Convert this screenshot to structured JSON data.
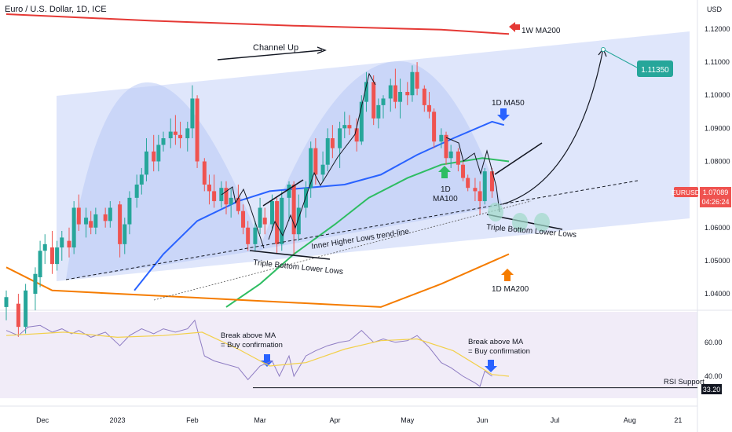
{
  "header": {
    "symbol_line": "Euro / U.S. Dollar, 1D, ICE"
  },
  "currency_label": "USD",
  "colors": {
    "up": "#26a69a",
    "down": "#ef5350",
    "ma50": "#2962ff",
    "ma100": "#2ebd62",
    "ma200_1d": "#f57c00",
    "ma200_1w": "#e53935",
    "channel": "#c5d2f7",
    "rsi": "#8e7cc3",
    "rsi_ma": "#f2d04b",
    "rsi_band": "#ede7f6",
    "price_tag": "#ef5350",
    "target_tag": "#26a69a",
    "blue_arrow": "#2962ff"
  },
  "annotations": {
    "channel_up": "Channel Up",
    "ma200_1w": "1W MA200",
    "ma50_1d": "1D MA50",
    "ma100_1d_line1": "1D",
    "ma100_1d_line2": "MA100",
    "ma200_1d": "1D MA200",
    "inner_trendline": "Inner Higher Lows trend-line",
    "triple_bottom_left": "Triple Bottom Lower Lows",
    "triple_bottom_right": "Triple Bottom Lower Lows",
    "rsi_break_left_1": "Break above MA",
    "rsi_break_left_2": "= Buy confirmation",
    "rsi_break_right_1": "Break above MA",
    "rsi_break_right_2": "= Buy confirmation",
    "rsi_support": "RSI Support",
    "target": "1.11350"
  },
  "price_tag": {
    "symbol": "EURUSD",
    "price": "1.07089",
    "countdown": "04:26:24"
  },
  "rsi_tag": "33.20",
  "chart_data": {
    "type": "candlestick",
    "title": "Euro / U.S. Dollar, 1D, ICE",
    "y_axis": {
      "label": "USD",
      "ticks": [
        "1.12000",
        "1.11000",
        "1.10000",
        "1.09000",
        "1.08000",
        "1.07000",
        "1.06000",
        "1.05000",
        "1.04000"
      ],
      "range": [
        1.0355,
        1.1245
      ]
    },
    "rsi_axis": {
      "ticks": [
        "60.00",
        "40.00"
      ],
      "range": [
        27,
        78
      ],
      "support": 33.2
    },
    "x_ticks": [
      "Dec",
      "2023",
      "Feb",
      "Mar",
      "Apr",
      "May",
      "Jun",
      "Jul",
      "Aug",
      "21"
    ],
    "x_tick_dates": [
      "2022-12-01",
      "2023-01-01",
      "2023-02-01",
      "2023-03-01",
      "2023-04-01",
      "2023-05-01",
      "2023-06-01",
      "2023-07-01",
      "2023-08-01",
      "2023-08-21"
    ],
    "date_range": [
      "2022-11-16",
      "2023-08-29"
    ],
    "candles": [
      {
        "date": "2022-11-16",
        "o": 1.036,
        "h": 1.041,
        "l": 1.032,
        "c": 1.039
      },
      {
        "date": "2022-11-21",
        "o": 1.037,
        "h": 1.04,
        "l": 1.027,
        "c": 1.03
      },
      {
        "date": "2022-11-24",
        "o": 1.03,
        "h": 1.043,
        "l": 1.028,
        "c": 1.041
      },
      {
        "date": "2022-11-28",
        "o": 1.04,
        "h": 1.048,
        "l": 1.035,
        "c": 1.046
      },
      {
        "date": "2022-11-30",
        "o": 1.045,
        "h": 1.056,
        "l": 1.042,
        "c": 1.053
      },
      {
        "date": "2022-12-02",
        "o": 1.053,
        "h": 1.058,
        "l": 1.049,
        "c": 1.055
      },
      {
        "date": "2022-12-05",
        "o": 1.054,
        "h": 1.059,
        "l": 1.046,
        "c": 1.049
      },
      {
        "date": "2022-12-07",
        "o": 1.049,
        "h": 1.056,
        "l": 1.047,
        "c": 1.054
      },
      {
        "date": "2022-12-09",
        "o": 1.054,
        "h": 1.059,
        "l": 1.05,
        "c": 1.057
      },
      {
        "date": "2022-12-12",
        "o": 1.056,
        "h": 1.06,
        "l": 1.051,
        "c": 1.054
      },
      {
        "date": "2022-12-14",
        "o": 1.054,
        "h": 1.068,
        "l": 1.052,
        "c": 1.066
      },
      {
        "date": "2022-12-16",
        "o": 1.066,
        "h": 1.07,
        "l": 1.059,
        "c": 1.061
      },
      {
        "date": "2022-12-19",
        "o": 1.061,
        "h": 1.066,
        "l": 1.057,
        "c": 1.063
      },
      {
        "date": "2022-12-21",
        "o": 1.062,
        "h": 1.065,
        "l": 1.058,
        "c": 1.06
      },
      {
        "date": "2022-12-23",
        "o": 1.06,
        "h": 1.066,
        "l": 1.058,
        "c": 1.064
      },
      {
        "date": "2022-12-27",
        "o": 1.064,
        "h": 1.066,
        "l": 1.06,
        "c": 1.062
      },
      {
        "date": "2022-12-29",
        "o": 1.062,
        "h": 1.068,
        "l": 1.06,
        "c": 1.066
      },
      {
        "date": "2023-01-02",
        "o": 1.067,
        "h": 1.068,
        "l": 1.051,
        "c": 1.055
      },
      {
        "date": "2023-01-04",
        "o": 1.055,
        "h": 1.063,
        "l": 1.052,
        "c": 1.061
      },
      {
        "date": "2023-01-06",
        "o": 1.061,
        "h": 1.071,
        "l": 1.058,
        "c": 1.069
      },
      {
        "date": "2023-01-09",
        "o": 1.069,
        "h": 1.076,
        "l": 1.066,
        "c": 1.073
      },
      {
        "date": "2023-01-11",
        "o": 1.073,
        "h": 1.078,
        "l": 1.07,
        "c": 1.076
      },
      {
        "date": "2023-01-13",
        "o": 1.076,
        "h": 1.087,
        "l": 1.074,
        "c": 1.083
      },
      {
        "date": "2023-01-16",
        "o": 1.083,
        "h": 1.088,
        "l": 1.077,
        "c": 1.08
      },
      {
        "date": "2023-01-18",
        "o": 1.08,
        "h": 1.088,
        "l": 1.077,
        "c": 1.085
      },
      {
        "date": "2023-01-20",
        "o": 1.085,
        "h": 1.089,
        "l": 1.083,
        "c": 1.087
      },
      {
        "date": "2023-01-23",
        "o": 1.087,
        "h": 1.093,
        "l": 1.084,
        "c": 1.089
      },
      {
        "date": "2023-01-25",
        "o": 1.089,
        "h": 1.094,
        "l": 1.085,
        "c": 1.088
      },
      {
        "date": "2023-01-27",
        "o": 1.088,
        "h": 1.092,
        "l": 1.084,
        "c": 1.087
      },
      {
        "date": "2023-01-30",
        "o": 1.087,
        "h": 1.092,
        "l": 1.083,
        "c": 1.09
      },
      {
        "date": "2023-02-01",
        "o": 1.09,
        "h": 1.103,
        "l": 1.087,
        "c": 1.099
      },
      {
        "date": "2023-02-03",
        "o": 1.099,
        "h": 1.1,
        "l": 1.078,
        "c": 1.08
      },
      {
        "date": "2023-02-06",
        "o": 1.08,
        "h": 1.081,
        "l": 1.071,
        "c": 1.073
      },
      {
        "date": "2023-02-08",
        "o": 1.073,
        "h": 1.076,
        "l": 1.067,
        "c": 1.071
      },
      {
        "date": "2023-02-10",
        "o": 1.071,
        "h": 1.076,
        "l": 1.066,
        "c": 1.068
      },
      {
        "date": "2023-02-13",
        "o": 1.068,
        "h": 1.074,
        "l": 1.066,
        "c": 1.072
      },
      {
        "date": "2023-02-15",
        "o": 1.072,
        "h": 1.074,
        "l": 1.064,
        "c": 1.067
      },
      {
        "date": "2023-02-17",
        "o": 1.067,
        "h": 1.072,
        "l": 1.063,
        "c": 1.069
      },
      {
        "date": "2023-02-20",
        "o": 1.069,
        "h": 1.073,
        "l": 1.064,
        "c": 1.065
      },
      {
        "date": "2023-02-22",
        "o": 1.065,
        "h": 1.067,
        "l": 1.058,
        "c": 1.06
      },
      {
        "date": "2023-02-24",
        "o": 1.06,
        "h": 1.062,
        "l": 1.053,
        "c": 1.055
      },
      {
        "date": "2023-02-27",
        "o": 1.055,
        "h": 1.062,
        "l": 1.053,
        "c": 1.06
      },
      {
        "date": "2023-03-01",
        "o": 1.06,
        "h": 1.069,
        "l": 1.058,
        "c": 1.066
      },
      {
        "date": "2023-03-03",
        "o": 1.063,
        "h": 1.066,
        "l": 1.058,
        "c": 1.061
      },
      {
        "date": "2023-03-06",
        "o": 1.061,
        "h": 1.07,
        "l": 1.059,
        "c": 1.068
      },
      {
        "date": "2023-03-08",
        "o": 1.068,
        "h": 1.069,
        "l": 1.052,
        "c": 1.055
      },
      {
        "date": "2023-03-10",
        "o": 1.055,
        "h": 1.071,
        "l": 1.053,
        "c": 1.069
      },
      {
        "date": "2023-03-13",
        "o": 1.069,
        "h": 1.074,
        "l": 1.062,
        "c": 1.073
      },
      {
        "date": "2023-03-15",
        "o": 1.073,
        "h": 1.074,
        "l": 1.052,
        "c": 1.058
      },
      {
        "date": "2023-03-17",
        "o": 1.058,
        "h": 1.07,
        "l": 1.056,
        "c": 1.066
      },
      {
        "date": "2023-03-20",
        "o": 1.066,
        "h": 1.074,
        "l": 1.063,
        "c": 1.072
      },
      {
        "date": "2023-03-22",
        "o": 1.072,
        "h": 1.086,
        "l": 1.069,
        "c": 1.084
      },
      {
        "date": "2023-03-24",
        "o": 1.084,
        "h": 1.087,
        "l": 1.073,
        "c": 1.076
      },
      {
        "date": "2023-03-27",
        "o": 1.076,
        "h": 1.083,
        "l": 1.074,
        "c": 1.079
      },
      {
        "date": "2023-03-29",
        "o": 1.079,
        "h": 1.09,
        "l": 1.077,
        "c": 1.087
      },
      {
        "date": "2023-03-31",
        "o": 1.087,
        "h": 1.091,
        "l": 1.081,
        "c": 1.084
      },
      {
        "date": "2023-04-03",
        "o": 1.084,
        "h": 1.092,
        "l": 1.078,
        "c": 1.09
      },
      {
        "date": "2023-04-05",
        "o": 1.09,
        "h": 1.095,
        "l": 1.087,
        "c": 1.091
      },
      {
        "date": "2023-04-07",
        "o": 1.091,
        "h": 1.094,
        "l": 1.088,
        "c": 1.09
      },
      {
        "date": "2023-04-10",
        "o": 1.09,
        "h": 1.093,
        "l": 1.083,
        "c": 1.086
      },
      {
        "date": "2023-04-12",
        "o": 1.086,
        "h": 1.1,
        "l": 1.085,
        "c": 1.098
      },
      {
        "date": "2023-04-14",
        "o": 1.098,
        "h": 1.107,
        "l": 1.095,
        "c": 1.104
      },
      {
        "date": "2023-04-17",
        "o": 1.104,
        "h": 1.106,
        "l": 1.091,
        "c": 1.093
      },
      {
        "date": "2023-04-19",
        "o": 1.093,
        "h": 1.099,
        "l": 1.09,
        "c": 1.097
      },
      {
        "date": "2023-04-21",
        "o": 1.097,
        "h": 1.1,
        "l": 1.093,
        "c": 1.099
      },
      {
        "date": "2023-04-24",
        "o": 1.099,
        "h": 1.105,
        "l": 1.095,
        "c": 1.103
      },
      {
        "date": "2023-04-26",
        "o": 1.103,
        "h": 1.108,
        "l": 1.096,
        "c": 1.098
      },
      {
        "date": "2023-04-28",
        "o": 1.098,
        "h": 1.105,
        "l": 1.093,
        "c": 1.101
      },
      {
        "date": "2023-05-01",
        "o": 1.101,
        "h": 1.104,
        "l": 1.097,
        "c": 1.1
      },
      {
        "date": "2023-05-03",
        "o": 1.1,
        "h": 1.109,
        "l": 1.098,
        "c": 1.107
      },
      {
        "date": "2023-05-05",
        "o": 1.107,
        "h": 1.11,
        "l": 1.1,
        "c": 1.102
      },
      {
        "date": "2023-05-08",
        "o": 1.102,
        "h": 1.103,
        "l": 1.095,
        "c": 1.097
      },
      {
        "date": "2023-05-10",
        "o": 1.097,
        "h": 1.101,
        "l": 1.093,
        "c": 1.095
      },
      {
        "date": "2023-05-12",
        "o": 1.095,
        "h": 1.096,
        "l": 1.084,
        "c": 1.086
      },
      {
        "date": "2023-05-15",
        "o": 1.086,
        "h": 1.09,
        "l": 1.084,
        "c": 1.088
      },
      {
        "date": "2023-05-17",
        "o": 1.088,
        "h": 1.089,
        "l": 1.079,
        "c": 1.081
      },
      {
        "date": "2023-05-19",
        "o": 1.081,
        "h": 1.085,
        "l": 1.078,
        "c": 1.083
      },
      {
        "date": "2023-05-22",
        "o": 1.083,
        "h": 1.084,
        "l": 1.077,
        "c": 1.079
      },
      {
        "date": "2023-05-24",
        "o": 1.079,
        "h": 1.08,
        "l": 1.074,
        "c": 1.075
      },
      {
        "date": "2023-05-26",
        "o": 1.075,
        "h": 1.076,
        "l": 1.071,
        "c": 1.072
      },
      {
        "date": "2023-05-29",
        "o": 1.072,
        "h": 1.075,
        "l": 1.068,
        "c": 1.071
      },
      {
        "date": "2023-05-31",
        "o": 1.071,
        "h": 1.074,
        "l": 1.064,
        "c": 1.068
      },
      {
        "date": "2023-06-02",
        "o": 1.068,
        "h": 1.078,
        "l": 1.067,
        "c": 1.077
      },
      {
        "date": "2023-06-05",
        "o": 1.077,
        "h": 1.078,
        "l": 1.069,
        "c": 1.071
      }
    ],
    "series": [
      {
        "name": "1D MA50",
        "x": [
          "2023-01-08",
          "2023-01-20",
          "2023-02-03",
          "2023-02-20",
          "2023-03-05",
          "2023-03-20",
          "2023-04-05",
          "2023-04-20",
          "2023-05-05",
          "2023-05-20",
          "2023-06-05",
          "2023-06-10"
        ],
        "y": [
          1.041,
          1.052,
          1.062,
          1.068,
          1.071,
          1.072,
          1.073,
          1.076,
          1.082,
          1.087,
          1.092,
          1.091
        ]
      },
      {
        "name": "1D MA100",
        "x": [
          "2023-02-15",
          "2023-03-01",
          "2023-03-15",
          "2023-04-01",
          "2023-04-15",
          "2023-05-01",
          "2023-05-15",
          "2023-06-01",
          "2023-06-12"
        ],
        "y": [
          1.036,
          1.043,
          1.052,
          1.061,
          1.069,
          1.075,
          1.079,
          1.081,
          1.08
        ]
      },
      {
        "name": "1D MA200",
        "x": [
          "2022-11-16",
          "2022-12-05",
          "2023-04-20",
          "2023-05-15",
          "2023-06-12"
        ],
        "y": [
          1.048,
          1.041,
          1.036,
          1.043,
          1.052
        ]
      },
      {
        "name": "1W MA200",
        "x": [
          "2022-11-16",
          "2023-01-15",
          "2023-03-15",
          "2023-05-15",
          "2023-06-12"
        ],
        "y": [
          1.1245,
          1.1225,
          1.121,
          1.1198,
          1.1185
        ]
      }
    ],
    "rsi": [
      {
        "date": "2022-11-16",
        "v": 67
      },
      {
        "date": "2022-11-21",
        "v": 64
      },
      {
        "date": "2022-11-25",
        "v": 69
      },
      {
        "date": "2022-11-30",
        "v": 70
      },
      {
        "date": "2022-12-05",
        "v": 66
      },
      {
        "date": "2022-12-09",
        "v": 68
      },
      {
        "date": "2022-12-13",
        "v": 65
      },
      {
        "date": "2022-12-16",
        "v": 67
      },
      {
        "date": "2022-12-21",
        "v": 63
      },
      {
        "date": "2022-12-27",
        "v": 66
      },
      {
        "date": "2023-01-02",
        "v": 58
      },
      {
        "date": "2023-01-06",
        "v": 64
      },
      {
        "date": "2023-01-11",
        "v": 68
      },
      {
        "date": "2023-01-16",
        "v": 65
      },
      {
        "date": "2023-01-20",
        "v": 68
      },
      {
        "date": "2023-01-25",
        "v": 66
      },
      {
        "date": "2023-01-30",
        "v": 68
      },
      {
        "date": "2023-02-02",
        "v": 73
      },
      {
        "date": "2023-02-06",
        "v": 52
      },
      {
        "date": "2023-02-10",
        "v": 49
      },
      {
        "date": "2023-02-15",
        "v": 47
      },
      {
        "date": "2023-02-20",
        "v": 45
      },
      {
        "date": "2023-02-24",
        "v": 38
      },
      {
        "date": "2023-03-01",
        "v": 46
      },
      {
        "date": "2023-03-06",
        "v": 49
      },
      {
        "date": "2023-03-09",
        "v": 40
      },
      {
        "date": "2023-03-13",
        "v": 52
      },
      {
        "date": "2023-03-15",
        "v": 40
      },
      {
        "date": "2023-03-20",
        "v": 52
      },
      {
        "date": "2023-03-24",
        "v": 55
      },
      {
        "date": "2023-03-29",
        "v": 58
      },
      {
        "date": "2023-04-03",
        "v": 60
      },
      {
        "date": "2023-04-07",
        "v": 61
      },
      {
        "date": "2023-04-12",
        "v": 67
      },
      {
        "date": "2023-04-17",
        "v": 60
      },
      {
        "date": "2023-04-21",
        "v": 62
      },
      {
        "date": "2023-04-26",
        "v": 60
      },
      {
        "date": "2023-05-01",
        "v": 61
      },
      {
        "date": "2023-05-05",
        "v": 64
      },
      {
        "date": "2023-05-10",
        "v": 57
      },
      {
        "date": "2023-05-15",
        "v": 48
      },
      {
        "date": "2023-05-19",
        "v": 45
      },
      {
        "date": "2023-05-24",
        "v": 40
      },
      {
        "date": "2023-05-29",
        "v": 36
      },
      {
        "date": "2023-05-31",
        "v": 34
      },
      {
        "date": "2023-06-02",
        "v": 43
      },
      {
        "date": "2023-06-05",
        "v": 40
      }
    ],
    "rsi_ma": [
      {
        "date": "2022-11-16",
        "v": 64
      },
      {
        "date": "2022-12-10",
        "v": 66
      },
      {
        "date": "2023-01-01",
        "v": 63
      },
      {
        "date": "2023-01-20",
        "v": 64
      },
      {
        "date": "2023-02-05",
        "v": 66
      },
      {
        "date": "2023-02-20",
        "v": 56
      },
      {
        "date": "2023-03-05",
        "v": 46
      },
      {
        "date": "2023-03-20",
        "v": 48
      },
      {
        "date": "2023-04-05",
        "v": 56
      },
      {
        "date": "2023-04-20",
        "v": 61
      },
      {
        "date": "2023-05-05",
        "v": 62
      },
      {
        "date": "2023-05-20",
        "v": 55
      },
      {
        "date": "2023-06-05",
        "v": 41
      },
      {
        "date": "2023-06-12",
        "v": 40
      }
    ]
  }
}
